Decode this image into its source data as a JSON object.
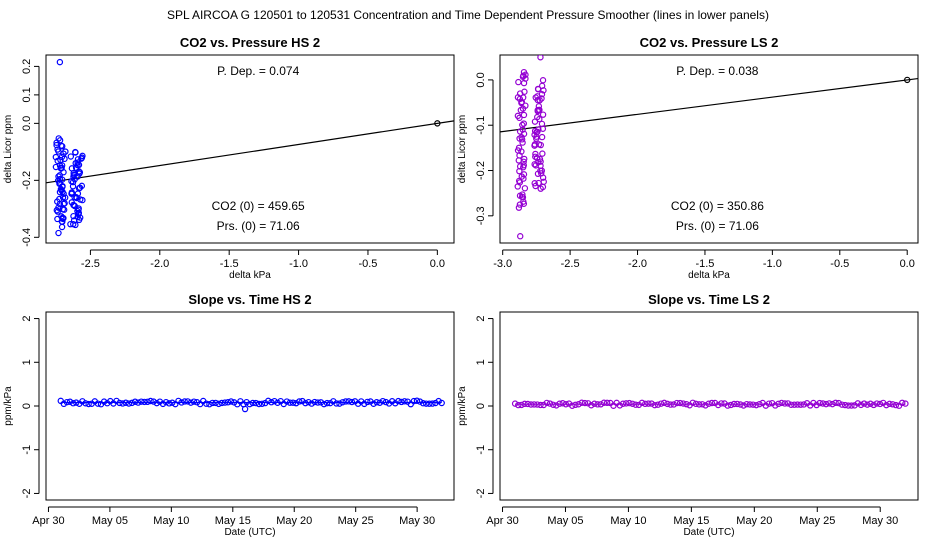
{
  "figure": {
    "suptitle": "SPL    AIRCOA G    120501 to 120531    Concentration and Time Dependent Pressure Smoother (lines in lower panels)"
  },
  "chart_data": [
    {
      "id": "hs-pressure",
      "type": "scatter",
      "title": "CO2 vs. Pressure HS 2",
      "xlabel": "delta kPa",
      "ylabel": "delta Licor ppm",
      "xlim": [
        -2.82,
        0.12
      ],
      "ylim": [
        -0.42,
        0.24
      ],
      "xticks": [
        -2.5,
        -2.0,
        -1.5,
        -1.0,
        -0.5,
        0.0
      ],
      "xtick_labels": [
        "-2.5",
        "-2.0",
        "-1.5",
        "-1.0",
        "-0.5",
        "0.0"
      ],
      "yticks": [
        -0.4,
        -0.2,
        0.0,
        0.1,
        0.2
      ],
      "ytick_labels": [
        "-0.4",
        "-0.2",
        "0.0",
        "0.1",
        "0.2"
      ],
      "color": "#0000ff",
      "annotations": {
        "p_dep": "P. Dep. =  0.074",
        "co2_0": "CO2 (0) =  459.65",
        "prs_0": "Prs. (0) =  71.06"
      },
      "fit_line": {
        "slope": 0.074,
        "intercept": 0.0
      },
      "anchor_point": [
        0.0,
        0.0
      ],
      "clusters": [
        {
          "x_center": -2.715,
          "x_spread": 0.035,
          "y_min": -0.36,
          "y_max": -0.06,
          "n": 55
        },
        {
          "x_center": -2.6,
          "x_spread": 0.045,
          "y_min": -0.36,
          "y_max": -0.1,
          "n": 55
        }
      ],
      "outliers": [
        [
          -2.72,
          0.215
        ],
        [
          -2.73,
          -0.385
        ]
      ]
    },
    {
      "id": "ls-pressure",
      "type": "scatter",
      "title": "CO2 vs. Pressure LS 2",
      "xlabel": "delta kPa",
      "ylabel": "delta Licor ppm",
      "xlim": [
        -3.02,
        0.08
      ],
      "ylim": [
        -0.36,
        0.055
      ],
      "xticks": [
        -3.0,
        -2.5,
        -2.0,
        -1.5,
        -1.0,
        -0.5,
        0.0
      ],
      "xtick_labels": [
        "-3.0",
        "-2.5",
        "-2.0",
        "-1.5",
        "-1.0",
        "-0.5",
        "0.0"
      ],
      "yticks": [
        -0.3,
        -0.2,
        -0.1,
        0.0
      ],
      "ytick_labels": [
        "-0.3",
        "-0.2",
        "-0.1",
        "0.0"
      ],
      "color": "#9400d3",
      "annotations": {
        "p_dep": "P. Dep. =  0.038",
        "co2_0": "CO2 (0) =  350.86",
        "prs_0": "Prs. (0) =  71.06"
      },
      "fit_line": {
        "slope": 0.038,
        "intercept": 0.0
      },
      "anchor_point": [
        0.0,
        0.0
      ],
      "clusters": [
        {
          "x_center": -2.86,
          "x_spread": 0.03,
          "y_min": -0.29,
          "y_max": 0.02,
          "n": 55
        },
        {
          "x_center": -2.73,
          "x_spread": 0.035,
          "y_min": -0.24,
          "y_max": -0.01,
          "n": 55
        }
      ],
      "outliers": [
        [
          -2.72,
          0.05
        ],
        [
          -2.87,
          -0.345
        ]
      ]
    },
    {
      "id": "hs-slope",
      "type": "scatter",
      "title": "Slope vs. Time HS 2",
      "xlabel": "Date (UTC)",
      "ylabel": "ppm/kPa",
      "xlim": [
        -0.2,
        33.0
      ],
      "ylim": [
        -2.15,
        2.15
      ],
      "xticks": [
        0,
        5,
        10,
        15,
        20,
        25,
        30
      ],
      "xtick_labels": [
        "Apr 30",
        "May 05",
        "May 10",
        "May 15",
        "May 20",
        "May 25",
        "May 30"
      ],
      "yticks": [
        -2,
        -1,
        0,
        1,
        2
      ],
      "ytick_labels": [
        "-2",
        "-1",
        "0",
        "1",
        "2"
      ],
      "color": "#0000ff",
      "time_range": [
        1.0,
        32.0
      ],
      "n_points": 124,
      "mean": 0.08,
      "spread": 0.04,
      "outliers": [
        [
          16.0,
          -0.07
        ]
      ]
    },
    {
      "id": "ls-slope",
      "type": "scatter",
      "title": "Slope vs. Time LS 2",
      "xlabel": "Date (UTC)",
      "ylabel": "ppm/kPa",
      "xlim": [
        -0.2,
        33.0
      ],
      "ylim": [
        -2.15,
        2.15
      ],
      "xticks": [
        0,
        5,
        10,
        15,
        20,
        25,
        30
      ],
      "xtick_labels": [
        "Apr 30",
        "May 05",
        "May 10",
        "May 15",
        "May 20",
        "May 25",
        "May 30"
      ],
      "yticks": [
        -2,
        -1,
        0,
        1,
        2
      ],
      "ytick_labels": [
        "-2",
        "-1",
        "0",
        "1",
        "2"
      ],
      "color": "#9400d3",
      "time_range": [
        1.0,
        32.0
      ],
      "n_points": 124,
      "mean": 0.04,
      "spread": 0.035,
      "outliers": []
    }
  ]
}
